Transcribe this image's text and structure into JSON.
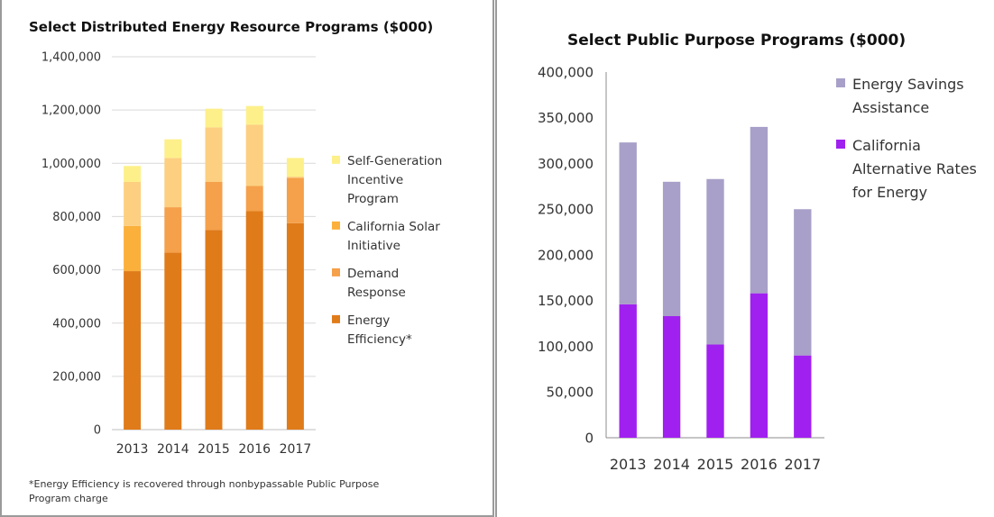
{
  "charts": {
    "left": {
      "title": "Select Distributed Energy Resource Programs ($000)",
      "footnote_line1": "*Energy Efficiency is recovered through nonbypassable Public Purpose",
      "footnote_line2": "Program charge"
    },
    "right": {
      "title": "Select Public Purpose Programs ($000)"
    }
  },
  "chart_data": [
    {
      "type": "bar",
      "stacked": true,
      "title": "Select Distributed Energy Resource Programs ($000)",
      "categories": [
        "2013",
        "2014",
        "2015",
        "2016",
        "2017"
      ],
      "ylim": [
        0,
        1400000
      ],
      "yticks": [
        "0",
        "200,000",
        "400,000",
        "600,000",
        "800,000",
        "1,000,000",
        "1,200,000",
        "1,400,000"
      ],
      "grid": true,
      "legend_position": "right",
      "series": [
        {
          "name": "Energy Efficiency*",
          "color": "#e07b1a",
          "values": [
            595000,
            665000,
            750000,
            820000,
            775000
          ]
        },
        {
          "name": "Demand Response",
          "color": "#f5a04a",
          "values": [
            0,
            170000,
            180000,
            95000,
            170000
          ]
        },
        {
          "name": "California Solar Initiative",
          "color": "#fbb03b",
          "values": [
            170000,
            0,
            0,
            0,
            0
          ]
        },
        {
          "name": "Self-Generation Incentive Program",
          "color": "#fcd080",
          "values": [
            165000,
            185000,
            205000,
            230000,
            5000
          ]
        },
        {
          "name": "Self-Generation Incentive Program (top)",
          "color": "#fdf08a",
          "values": [
            60000,
            70000,
            70000,
            70000,
            70000
          ]
        }
      ],
      "legend": [
        {
          "lines": [
            "Self-Generation",
            "Incentive",
            "Program"
          ],
          "color": "#fdf08a"
        },
        {
          "lines": [
            "California Solar",
            "Initiative"
          ],
          "color": "#fbb03b"
        },
        {
          "lines": [
            "Demand",
            "Response"
          ],
          "color": "#f5a04a"
        },
        {
          "lines": [
            "Energy",
            "Efficiency*"
          ],
          "color": "#e07b1a"
        }
      ]
    },
    {
      "type": "bar",
      "stacked": true,
      "title": "Select Public Purpose Programs ($000)",
      "categories": [
        "2013",
        "2014",
        "2015",
        "2016",
        "2017"
      ],
      "ylim": [
        0,
        400000
      ],
      "yticks": [
        "0",
        "50,000",
        "100,000",
        "150,000",
        "200,000",
        "250,000",
        "300,000",
        "350,000",
        "400,000"
      ],
      "grid": false,
      "legend_position": "right",
      "series": [
        {
          "name": "California Alternative Rates for Energy",
          "color": "#a020f0",
          "values": [
            146000,
            133000,
            102000,
            158000,
            90000
          ]
        },
        {
          "name": "Energy Savings Assistance",
          "color": "#a8a0c8",
          "values": [
            177000,
            147000,
            181000,
            182000,
            160000
          ]
        }
      ],
      "legend": [
        {
          "lines": [
            "Energy Savings",
            "Assistance"
          ],
          "color": "#a8a0c8"
        },
        {
          "lines": [
            "California",
            "Alternative Rates",
            "for Energy"
          ],
          "color": "#a020f0"
        }
      ]
    }
  ]
}
